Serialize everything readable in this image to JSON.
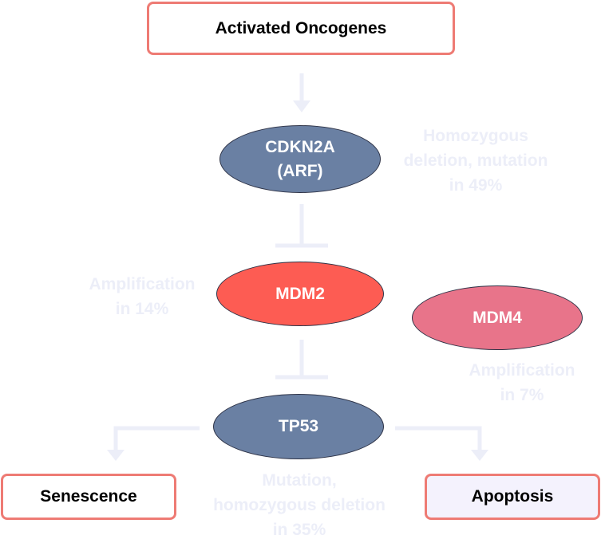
{
  "boxes": {
    "activated_oncogenes": "Activated Oncogenes",
    "senescence": "Senescence",
    "apoptosis": "Apoptosis"
  },
  "nodes": {
    "cdkn2a_line1": "CDKN2A",
    "cdkn2a_line2": "(ARF)",
    "mdm2": "MDM2",
    "mdm4": "MDM4",
    "tp53": "TP53"
  },
  "annotations": {
    "cdkn2a_line1": "Homozygous",
    "cdkn2a_line2": "deletion, mutation",
    "cdkn2a_line3": "in 49%",
    "mdm2_line1": "Amplification",
    "mdm2_line2": "in 14%",
    "mdm4_line1": "Amplification",
    "mdm4_line2": "in 7%",
    "tp53_line1": "Mutation,",
    "tp53_line2": "homozygous deletion",
    "tp53_line3": "in 35%"
  },
  "colors": {
    "box_border": "#ee7b74",
    "node_blue": "#6a80a3",
    "node_mdm2": "#fd5c53",
    "node_mdm4": "#e8748a",
    "connector": "#eceef8",
    "annotation_text": "#eceef8"
  }
}
